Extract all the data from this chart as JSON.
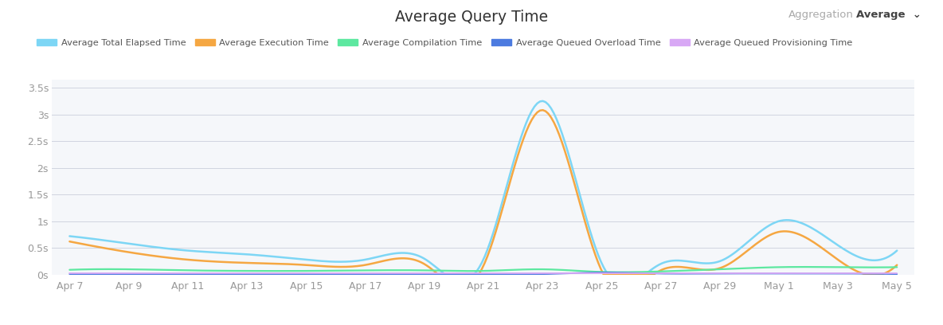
{
  "title": "Average Query Time",
  "background_color": "#ffffff",
  "plot_bg_color": "#f5f7fa",
  "grid_color": "#d0d4e0",
  "ylim": [
    0,
    3.65
  ],
  "yticks": [
    0,
    0.5,
    1.0,
    1.5,
    2.0,
    2.5,
    3.0,
    3.5
  ],
  "ytick_labels": [
    "0s",
    "0.5s",
    "1s",
    "1.5s",
    "2s",
    "2.5s",
    "3s",
    "3.5s"
  ],
  "x_labels": [
    "Apr 7",
    "Apr 9",
    "Apr 11",
    "Apr 13",
    "Apr 15",
    "Apr 17",
    "Apr 19",
    "Apr 21",
    "Apr 23",
    "Apr 25",
    "Apr 27",
    "Apr 29",
    "May 1",
    "May 3",
    "May 5"
  ],
  "legend": [
    {
      "label": "Average Total Elapsed Time",
      "color": "#7dd6f5"
    },
    {
      "label": "Average Execution Time",
      "color": "#f5a742"
    },
    {
      "label": "Average Compilation Time",
      "color": "#5de8a0"
    },
    {
      "label": "Average Queued Overload Time",
      "color": "#4c7be0"
    },
    {
      "label": "Average Queued Provisioning Time",
      "color": "#d8a8f5"
    }
  ],
  "series": {
    "elapsed": [
      0.72,
      0.58,
      0.45,
      0.38,
      0.28,
      0.28,
      0.3,
      0.28,
      3.25,
      0.22,
      0.2,
      0.25,
      1.0,
      0.55,
      0.45
    ],
    "execution": [
      0.62,
      0.42,
      0.28,
      0.22,
      0.18,
      0.18,
      0.2,
      0.16,
      3.08,
      0.08,
      0.08,
      0.12,
      0.8,
      0.28,
      0.18
    ],
    "compilation": [
      0.09,
      0.1,
      0.08,
      0.07,
      0.07,
      0.08,
      0.08,
      0.07,
      0.1,
      0.05,
      0.06,
      0.1,
      0.14,
      0.14,
      0.14
    ],
    "overload": [
      0.01,
      0.01,
      0.01,
      0.01,
      0.01,
      0.01,
      0.01,
      0.01,
      0.01,
      0.04,
      0.02,
      0.02,
      0.02,
      0.02,
      0.01
    ],
    "provisioning": [
      0.02,
      0.02,
      0.02,
      0.02,
      0.02,
      0.02,
      0.02,
      0.02,
      0.02,
      0.02,
      0.02,
      0.02,
      0.02,
      0.02,
      0.02
    ]
  }
}
